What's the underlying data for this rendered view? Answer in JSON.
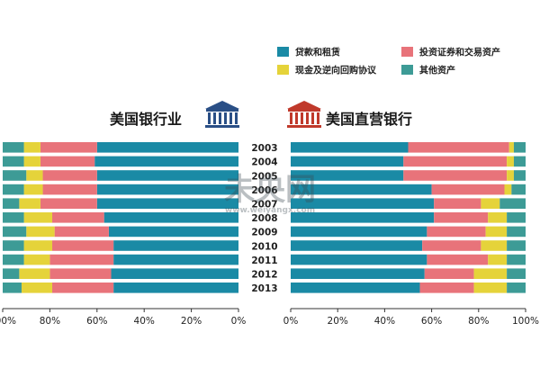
{
  "chart_data": {
    "type": "bar",
    "orientation": "horizontal-stacked-percent",
    "years": [
      "2003",
      "2004",
      "2005",
      "2006",
      "2007",
      "2008",
      "2009",
      "2010",
      "2011",
      "2012",
      "2013"
    ],
    "legend": {
      "placement": "top-right",
      "items": [
        {
          "key": "loans",
          "label": "贷款和租赁",
          "color": "#1a8aa5"
        },
        {
          "key": "securities",
          "label": "投资证券和交易资产",
          "color": "#e8737a"
        },
        {
          "key": "repo",
          "label": "现金及逆向回购协议",
          "color": "#e5d33a"
        },
        {
          "key": "other",
          "label": "其他资产",
          "color": "#3d9b96"
        }
      ]
    },
    "panels": [
      {
        "title": "美国银行业",
        "icon": "bank-building-icon",
        "icon_color": "#2a4f86",
        "direction": "right-to-left",
        "ticks": [
          "100%",
          "80%",
          "60%",
          "40%",
          "20%",
          "0%"
        ],
        "series": [
          {
            "key": "loans",
            "values": [
              60,
              61,
              60,
              60,
              60,
              57,
              55,
              53,
              53,
              54,
              53
            ]
          },
          {
            "key": "securities",
            "values": [
              24,
              23,
              23,
              23,
              24,
              22,
              23,
              26,
              27,
              26,
              26
            ]
          },
          {
            "key": "repo",
            "values": [
              7,
              7,
              7,
              8,
              9,
              12,
              12,
              12,
              11,
              13,
              13
            ]
          },
          {
            "key": "other",
            "values": [
              9,
              9,
              10,
              9,
              7,
              9,
              10,
              9,
              9,
              7,
              8
            ]
          }
        ]
      },
      {
        "title": "美国直营银行",
        "icon": "bank-building-icon",
        "icon_color": "#c0392b",
        "direction": "left-to-right",
        "ticks": [
          "0%",
          "20%",
          "40%",
          "60%",
          "80%",
          "100%"
        ],
        "series": [
          {
            "key": "loans",
            "values": [
              50,
              48,
              48,
              60,
              61,
              61,
              58,
              56,
              58,
              57,
              55
            ]
          },
          {
            "key": "securities",
            "values": [
              43,
              44,
              44,
              31,
              20,
              23,
              25,
              25,
              26,
              21,
              23
            ]
          },
          {
            "key": "repo",
            "values": [
              2,
              3,
              3,
              3,
              8,
              8,
              9,
              11,
              8,
              14,
              14
            ]
          },
          {
            "key": "other",
            "values": [
              5,
              5,
              5,
              6,
              11,
              8,
              8,
              8,
              8,
              8,
              8
            ]
          }
        ]
      }
    ],
    "watermark": {
      "main": "未央网",
      "url": "www.weiyangx.com"
    }
  }
}
